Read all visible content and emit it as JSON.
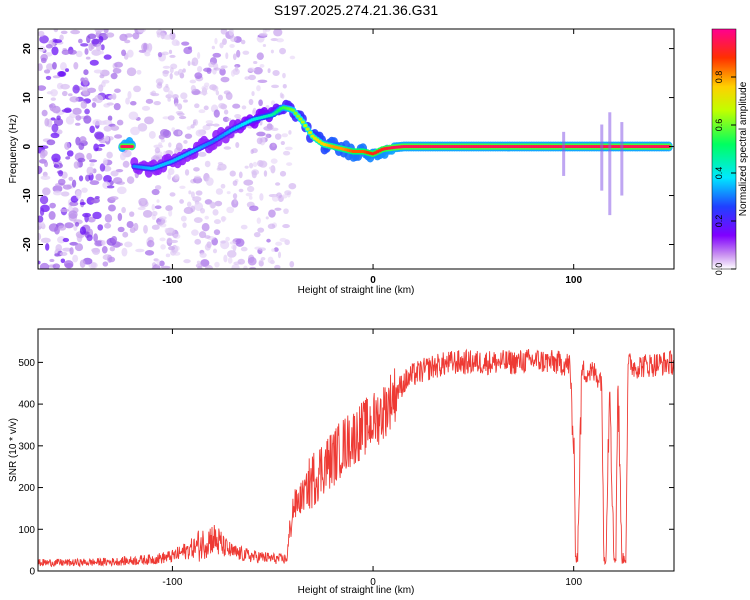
{
  "title": "S197.2025.274.21.36.G31",
  "chart_data": [
    {
      "type": "heatmap",
      "title": "S197.2025.274.21.36.G31",
      "xlabel": "Height of straight line (km)",
      "ylabel": "Frequency (Hz)",
      "xlim": [
        -167,
        150
      ],
      "ylim": [
        -25,
        24
      ],
      "x_ticks": [
        -100,
        0,
        100
      ],
      "y_ticks": [
        -20,
        -10,
        0,
        10,
        20
      ],
      "colorbar": {
        "label": "Normalized spectral amplitude",
        "range": [
          0,
          1
        ],
        "ticks": [
          "0.0",
          "0.2",
          "0.4",
          "0.6",
          "0.8"
        ],
        "tick_values": [
          0.0,
          0.2,
          0.4,
          0.6,
          0.8
        ],
        "colors": [
          "#ffffff",
          "#c890f0",
          "#8000ff",
          "#2040ff",
          "#00e8ff",
          "#00ff60",
          "#c0ff00",
          "#ffd000",
          "#ff3000",
          "#ff0090"
        ]
      },
      "ridge": {
        "height_km": [
          -120,
          -110,
          -100,
          -90,
          -80,
          -70,
          -60,
          -50,
          -45,
          -40,
          -35,
          -30,
          -25,
          -20,
          -15,
          -10,
          -5,
          0,
          5,
          10,
          15,
          20,
          40,
          60,
          80,
          100,
          120,
          150
        ],
        "frequency_hz": [
          -4,
          -4.5,
          -3,
          -1,
          1,
          3.5,
          5.5,
          6.5,
          8,
          7.5,
          5,
          2,
          0.5,
          0,
          -0.5,
          -1,
          -1,
          -1.5,
          -0.5,
          -0.2,
          0,
          0,
          0,
          0,
          0,
          0,
          0,
          0
        ],
        "amplitude": [
          0.3,
          0.35,
          0.35,
          0.35,
          0.3,
          0.35,
          0.4,
          0.45,
          0.55,
          0.6,
          0.65,
          0.7,
          0.75,
          0.8,
          0.8,
          0.85,
          0.85,
          0.9,
          0.9,
          0.95,
          0.95,
          0.95,
          0.95,
          0.95,
          0.95,
          0.95,
          0.95,
          0.95
        ]
      }
    },
    {
      "type": "line",
      "xlabel": "Height of straight line (km)",
      "ylabel": "SNR (10 * v/v)",
      "xlim": [
        -167,
        150
      ],
      "ylim": [
        0,
        580
      ],
      "x_ticks": [
        -100,
        0,
        100
      ],
      "y_ticks": [
        0,
        100,
        200,
        300,
        400,
        500
      ],
      "series": [
        {
          "name": "SNR",
          "color": "#ee3a34",
          "x": [
            -167,
            -150,
            -130,
            -110,
            -100,
            -95,
            -90,
            -85,
            -80,
            -75,
            -70,
            -65,
            -60,
            -55,
            -50,
            -45,
            -43,
            -40,
            -35,
            -30,
            -25,
            -20,
            -15,
            -10,
            -5,
            0,
            5,
            10,
            15,
            20,
            25,
            30,
            35,
            40,
            50,
            60,
            70,
            80,
            90,
            98,
            100,
            101,
            102,
            104,
            110,
            114,
            115,
            116,
            118,
            120,
            121,
            122,
            124,
            126,
            127,
            128,
            130,
            140,
            150
          ],
          "y": [
            20,
            20,
            22,
            28,
            35,
            45,
            55,
            65,
            80,
            60,
            45,
            40,
            35,
            33,
            30,
            28,
            30,
            150,
            180,
            220,
            250,
            270,
            300,
            320,
            340,
            360,
            380,
            420,
            450,
            470,
            480,
            490,
            495,
            500,
            500,
            500,
            500,
            505,
            500,
            495,
            300,
            35,
            35,
            480,
            475,
            460,
            30,
            30,
            470,
            30,
            30,
            470,
            30,
            30,
            480,
            500,
            490,
            495,
            500
          ]
        }
      ]
    }
  ]
}
